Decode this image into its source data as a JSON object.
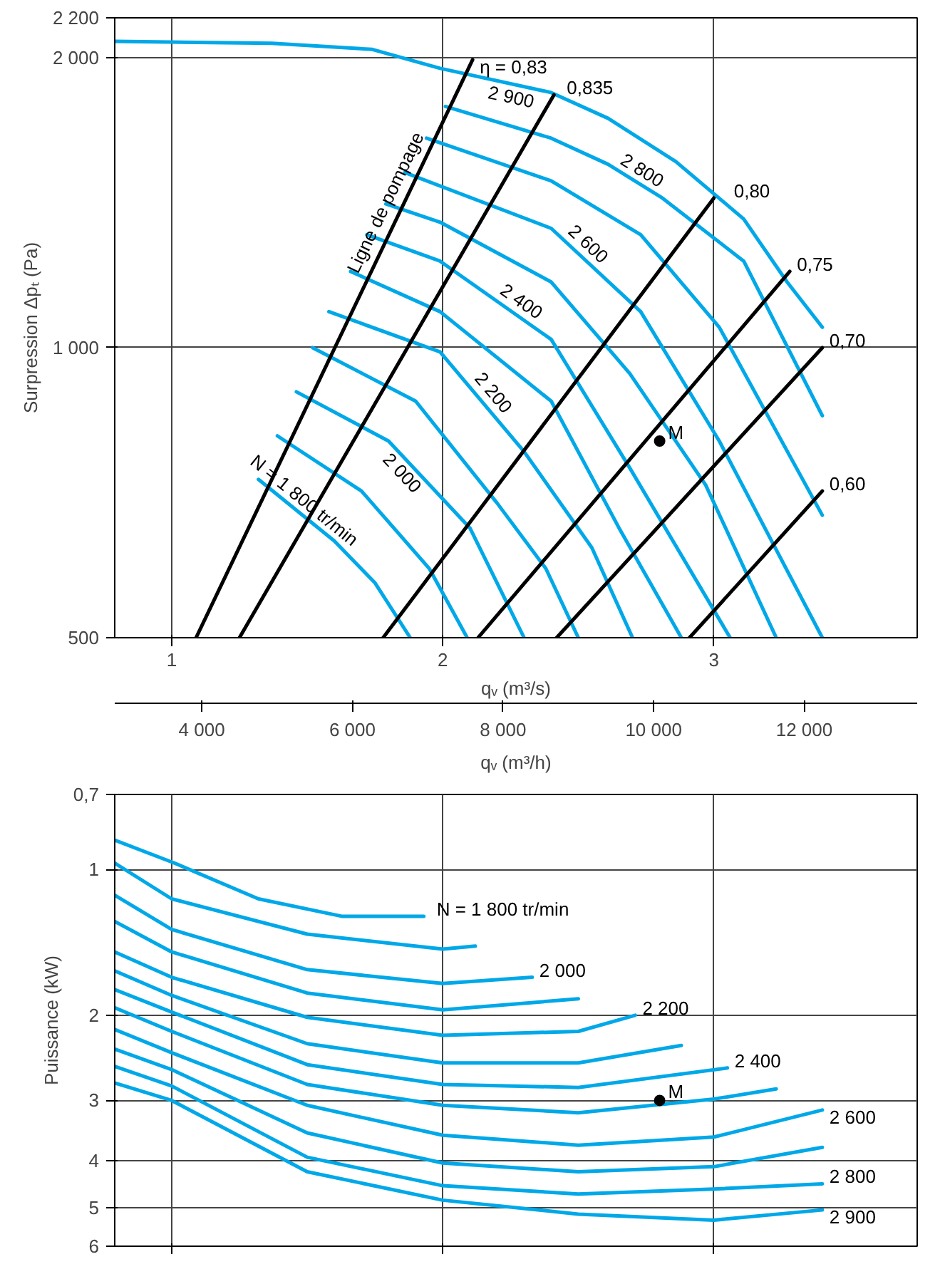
{
  "chart_data": [
    {
      "type": "line",
      "xlabel": "qᵥ (m³/s)",
      "x2label": "qᵥ (m³/h)",
      "ylabel": "Surpression Δpₜ (Pa)",
      "log": "y",
      "grid": true,
      "xlim": [
        0.79,
        3.75
      ],
      "xticks": [
        1,
        2,
        3
      ],
      "x2lim": [
        2844,
        13500
      ],
      "x2ticks": [
        {
          "value": 4000,
          "label": "4 000"
        },
        {
          "value": 6000,
          "label": "6 000"
        },
        {
          "value": 8000,
          "label": "8 000"
        },
        {
          "value": 10000,
          "label": "10 000"
        },
        {
          "value": 12000,
          "label": "12 000"
        }
      ],
      "ylim": [
        500,
        2200
      ],
      "yticks": [
        500,
        {
          "value": 1000,
          "label": "1 000"
        },
        {
          "value": 2000,
          "label": "2 000"
        },
        {
          "value": 2200,
          "label": "2 200"
        }
      ],
      "series": [
        {
          "name": "2 900",
          "color": "#00a8e8",
          "x": [
            0.79,
            1.37,
            1.74,
            1.99,
            2.4,
            2.61,
            2.86,
            3.11,
            3.27,
            3.4
          ],
          "values": [
            2080,
            2070,
            2040,
            1950,
            1840,
            1730,
            1560,
            1360,
            1170,
            1050
          ]
        },
        {
          "name": "2 800",
          "color": "#00a8e8",
          "x": [
            2.01,
            2.4,
            2.61,
            2.81,
            3.11,
            3.4
          ],
          "values": [
            1780,
            1650,
            1550,
            1430,
            1230,
            850
          ]
        },
        {
          "color": "#00a8e8",
          "x": [
            1.94,
            2.4,
            2.73,
            3.02,
            3.4
          ],
          "values": [
            1650,
            1490,
            1310,
            1050,
            670
          ]
        },
        {
          "name": "2 600",
          "color": "#00a8e8",
          "x": [
            1.86,
            2.4,
            2.73,
            3.02,
            3.4
          ],
          "values": [
            1520,
            1330,
            1090,
            800,
            500
          ]
        },
        {
          "color": "#00a8e8",
          "x": [
            1.79,
            1.99,
            2.4,
            2.69,
            2.97,
            3.23
          ],
          "values": [
            1410,
            1350,
            1170,
            940,
            720,
            500
          ]
        },
        {
          "name": "2 400",
          "color": "#00a8e8",
          "x": [
            1.72,
            1.99,
            2.4,
            2.69,
            3.06
          ],
          "values": [
            1310,
            1230,
            1020,
            750,
            500
          ]
        },
        {
          "color": "#00a8e8",
          "x": [
            1.66,
            1.99,
            2.4,
            2.65,
            2.88
          ],
          "values": [
            1200,
            1090,
            880,
            650,
            500
          ]
        },
        {
          "name": "2 200",
          "color": "#00a8e8",
          "x": [
            1.58,
            1.99,
            2.3,
            2.55,
            2.7
          ],
          "values": [
            1090,
            990,
            780,
            620,
            500
          ]
        },
        {
          "color": "#00a8e8",
          "x": [
            1.52,
            1.9,
            2.2,
            2.38,
            2.5
          ],
          "values": [
            1000,
            880,
            690,
            590,
            500
          ]
        },
        {
          "name": "2 000",
          "color": "#00a8e8",
          "x": [
            1.46,
            1.8,
            2.1,
            2.3
          ],
          "values": [
            900,
            800,
            650,
            500
          ]
        },
        {
          "color": "#00a8e8",
          "x": [
            1.39,
            1.7,
            1.95,
            2.09
          ],
          "values": [
            810,
            710,
            590,
            500
          ]
        },
        {
          "name": "N = 1 800 tr/min",
          "color": "#00a8e8",
          "x": [
            1.32,
            1.6,
            1.75,
            1.88
          ],
          "values": [
            730,
            630,
            570,
            500
          ]
        },
        {
          "name": "η = 0,83",
          "color": "#000000",
          "x": [
            1.09,
            2.11
          ],
          "values": [
            500,
            1990
          ]
        },
        {
          "name": "0,835",
          "color": "#000000",
          "x": [
            1.25,
            2.41
          ],
          "values": [
            500,
            1830
          ]
        },
        {
          "name": "0,80",
          "color": "#000000",
          "x": [
            1.78,
            3.0
          ],
          "values": [
            500,
            1430
          ]
        },
        {
          "name": "0,75",
          "color": "#000000",
          "x": [
            2.13,
            3.28
          ],
          "values": [
            500,
            1200
          ]
        },
        {
          "name": "0,70",
          "color": "#000000",
          "x": [
            2.42,
            3.4
          ],
          "values": [
            500,
            1000
          ]
        },
        {
          "name": "0,60",
          "color": "#000000",
          "x": [
            2.91,
            3.4
          ],
          "values": [
            500,
            710
          ]
        },
        {
          "name": "M",
          "type": "scatter",
          "marker": "circle",
          "color": "#000000",
          "x": [
            2.8
          ],
          "values": [
            800
          ]
        }
      ],
      "annotations": [
        {
          "text": "Ligne de pompage",
          "x": 1.845,
          "y": 1390
        }
      ]
    },
    {
      "type": "line",
      "ylabel": "Puissance (kW)",
      "log": "y",
      "grid": true,
      "tick_labels": "y",
      "xlim": [
        0.79,
        3.75
      ],
      "xticks": [
        1,
        2,
        3
      ],
      "ylim": [
        6,
        0.7
      ],
      "yticks": [
        {
          "value": 0.7,
          "label": "0,7"
        },
        1,
        2,
        3,
        4,
        5,
        6
      ],
      "series": [
        {
          "name": "N = 1 800 tr/min",
          "color": "#00a8e8",
          "x": [
            0.79,
            1.01,
            1.32,
            1.63,
            1.93
          ],
          "values": [
            0.87,
            0.97,
            1.15,
            1.25,
            1.25
          ]
        },
        {
          "color": "#00a8e8",
          "x": [
            0.79,
            1.0,
            1.5,
            2.0,
            2.12
          ],
          "values": [
            0.97,
            1.15,
            1.36,
            1.46,
            1.44
          ]
        },
        {
          "name": "2 000",
          "color": "#00a8e8",
          "x": [
            0.79,
            1.0,
            1.5,
            2.0,
            2.33
          ],
          "values": [
            1.13,
            1.33,
            1.61,
            1.72,
            1.67
          ]
        },
        {
          "color": "#00a8e8",
          "x": [
            0.79,
            1.0,
            1.5,
            2.0,
            2.5
          ],
          "values": [
            1.28,
            1.48,
            1.8,
            1.95,
            1.85
          ]
        },
        {
          "name": "2 200",
          "color": "#00a8e8",
          "x": [
            0.79,
            1.0,
            1.5,
            2.0,
            2.5,
            2.71
          ],
          "values": [
            1.48,
            1.67,
            2.02,
            2.2,
            2.16,
            2.0
          ]
        },
        {
          "color": "#00a8e8",
          "x": [
            0.79,
            1.0,
            1.5,
            2.0,
            2.5,
            2.88
          ],
          "values": [
            1.62,
            1.82,
            2.29,
            2.51,
            2.51,
            2.31
          ]
        },
        {
          "name": "2 400",
          "color": "#00a8e8",
          "x": [
            0.79,
            1.0,
            1.5,
            2.0,
            2.5,
            3.05
          ],
          "values": [
            1.77,
            1.97,
            2.53,
            2.78,
            2.82,
            2.57
          ]
        },
        {
          "color": "#00a8e8",
          "x": [
            0.79,
            1.0,
            1.5,
            2.0,
            2.5,
            3.0,
            3.23
          ],
          "values": [
            1.93,
            2.16,
            2.78,
            3.07,
            3.18,
            2.98,
            2.84
          ]
        },
        {
          "name": "2 600",
          "color": "#00a8e8",
          "x": [
            0.79,
            1.0,
            1.5,
            2.0,
            2.5,
            3.0,
            3.4
          ],
          "values": [
            2.14,
            2.39,
            3.07,
            3.54,
            3.71,
            3.57,
            3.14
          ]
        },
        {
          "color": "#00a8e8",
          "x": [
            0.79,
            1.0,
            1.5,
            2.0,
            2.5,
            3.0,
            3.4
          ],
          "values": [
            2.35,
            2.59,
            3.5,
            4.04,
            4.21,
            4.11,
            3.75
          ]
        },
        {
          "name": "2 800",
          "color": "#00a8e8",
          "x": [
            0.79,
            1.0,
            1.5,
            2.0,
            2.5,
            3.0,
            3.4
          ],
          "values": [
            2.55,
            2.8,
            3.93,
            4.5,
            4.68,
            4.57,
            4.46
          ]
        },
        {
          "name": "2 900",
          "color": "#00a8e8",
          "x": [
            0.79,
            1.0,
            1.5,
            2.0,
            2.5,
            3.0,
            3.4
          ],
          "values": [
            2.76,
            3.0,
            4.21,
            4.82,
            5.15,
            5.3,
            5.05
          ]
        },
        {
          "name": "M",
          "type": "scatter",
          "marker": "circle",
          "color": "#000000",
          "x": [
            2.8
          ],
          "values": [
            3.0
          ]
        }
      ]
    }
  ]
}
